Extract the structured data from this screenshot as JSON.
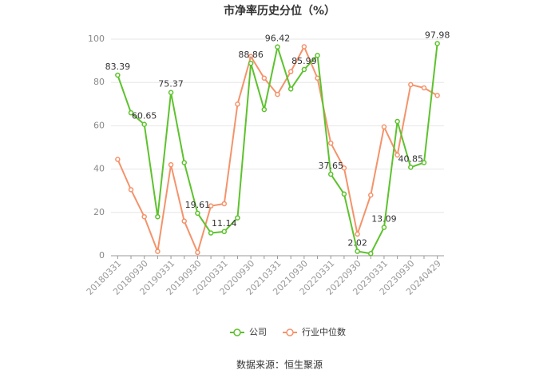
{
  "chart_data": {
    "type": "line",
    "title": "市净率历史分位（%）",
    "categories": [
      "20180331",
      null,
      "20180930",
      null,
      "20190331",
      null,
      "20190930",
      null,
      "20200331",
      null,
      "20200930",
      null,
      "20210331",
      null,
      "20210930",
      null,
      "20220331",
      null,
      "20220930",
      null,
      "20230331",
      null,
      "20230930",
      null,
      "20240429"
    ],
    "series": [
      {
        "name": "公司",
        "color": "#5dc22d",
        "values": [
          83.39,
          66,
          60.65,
          18,
          75.37,
          43,
          19.61,
          10.5,
          11.14,
          17.5,
          88.86,
          67.5,
          96.42,
          77,
          85.99,
          92.5,
          37.65,
          28.5,
          2.02,
          1,
          13.09,
          62,
          40.85,
          43,
          97.98
        ],
        "value_labels": [
          "83.39",
          null,
          "60.65",
          null,
          "75.37",
          null,
          "19.61",
          null,
          "11.14",
          null,
          "88.86",
          null,
          "96.42",
          null,
          "85.99",
          null,
          "37.65",
          null,
          "2.02",
          null,
          "13.09",
          null,
          "40.85",
          null,
          "97.98"
        ]
      },
      {
        "name": "行业中位数",
        "color": "#f4936b",
        "values": [
          44.5,
          30.5,
          18,
          2,
          42,
          16,
          1.5,
          23,
          24,
          70,
          92,
          82,
          74.5,
          85,
          96.5,
          82,
          52,
          40.5,
          10,
          28,
          59.5,
          46.5,
          79,
          77.5,
          74
        ]
      }
    ],
    "ylim": [
      0,
      100
    ],
    "yticks": [
      0,
      20,
      40,
      60,
      80,
      100
    ],
    "grid": true,
    "source": "数据来源：恒生聚源"
  }
}
